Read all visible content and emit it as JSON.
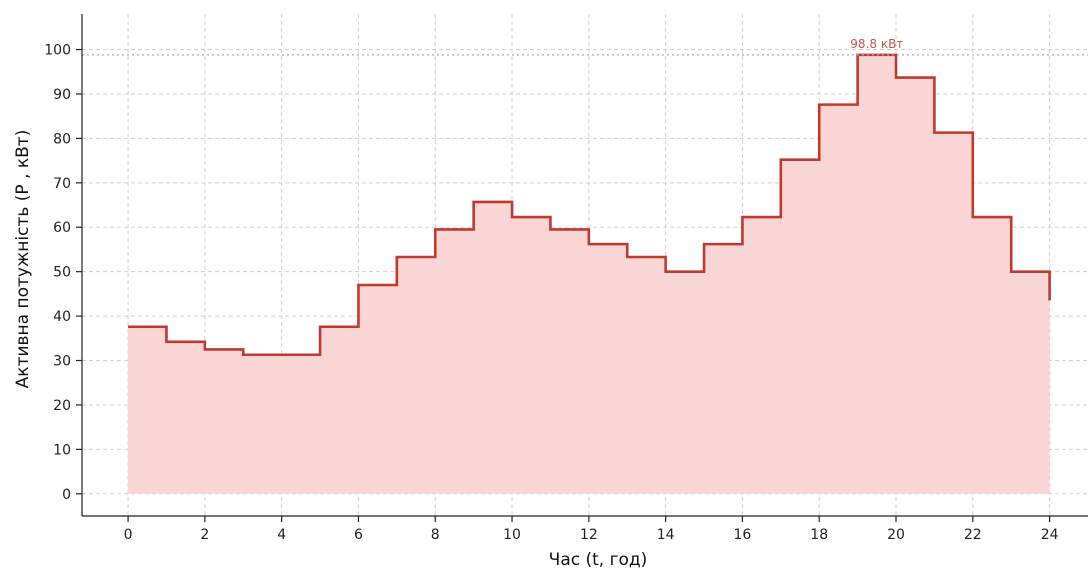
{
  "chart_data": {
    "type": "area",
    "step": "post",
    "xlabel": "Час (t, год)",
    "ylabel": "Активна потужність (P , кВт)",
    "xlim": [
      -1.2,
      25
    ],
    "ylim": [
      -5,
      108
    ],
    "x_ticks": [
      0,
      2,
      4,
      6,
      8,
      10,
      12,
      14,
      16,
      18,
      20,
      22,
      24
    ],
    "y_ticks": [
      0,
      10,
      20,
      30,
      40,
      50,
      60,
      70,
      80,
      90,
      100
    ],
    "grid": true,
    "x": [
      0,
      1,
      2,
      3,
      4,
      5,
      6,
      7,
      8,
      9,
      10,
      11,
      12,
      13,
      14,
      15,
      16,
      17,
      18,
      19,
      20,
      21,
      22,
      23,
      24
    ],
    "values": [
      37.6,
      34.2,
      32.5,
      31.3,
      31.3,
      37.6,
      47.0,
      53.3,
      59.5,
      65.7,
      62.3,
      59.5,
      56.2,
      53.3,
      50.0,
      56.2,
      62.3,
      75.2,
      87.6,
      98.8,
      93.7,
      81.3,
      62.3,
      50.0,
      43.5
    ],
    "peak": {
      "value": 98.8,
      "label": "98.8 кВт"
    },
    "colors": {
      "line": "#c0392b",
      "fill": "#f9d6d5",
      "peak_line": "#aaaaaa",
      "peak_text": "#b85a50"
    }
  }
}
